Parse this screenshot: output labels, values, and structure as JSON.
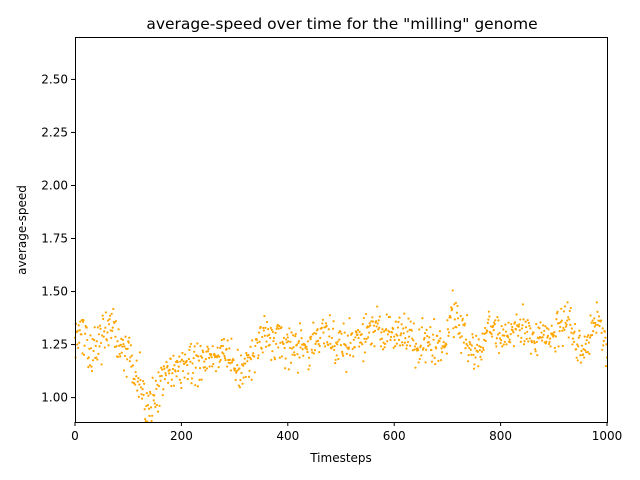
{
  "chart_data": {
    "type": "scatter",
    "title": "average-speed over time for the \"milling\" genome",
    "xlabel": "Timesteps",
    "ylabel": "average-speed",
    "xlim": [
      0,
      1000
    ],
    "ylim": [
      0.885,
      2.7
    ],
    "x_ticks": [
      0,
      200,
      400,
      600,
      800,
      1000
    ],
    "y_ticks": [
      1.0,
      1.25,
      1.5,
      1.75,
      2.0,
      2.25,
      2.5
    ],
    "x_tick_labels": [
      "0",
      "200",
      "400",
      "600",
      "800",
      "1000"
    ],
    "y_tick_labels": [
      "1.00",
      "1.25",
      "1.50",
      "1.75",
      "2.00",
      "2.25",
      "2.50"
    ],
    "grid": false,
    "marker_color": "#FFA500",
    "trend": {
      "x": [
        0,
        20,
        30,
        50,
        70,
        80,
        100,
        120,
        135,
        150,
        170,
        200,
        230,
        260,
        290,
        310,
        330,
        360,
        390,
        410,
        440,
        470,
        500,
        530,
        560,
        600,
        630,
        660,
        690,
        710,
        730,
        750,
        760,
        780,
        800,
        830,
        850,
        870,
        900,
        920,
        940,
        950,
        970,
        985,
        1000
      ],
      "y": [
        1.32,
        1.32,
        1.2,
        1.27,
        1.36,
        1.24,
        1.2,
        1.09,
        0.97,
        1.02,
        1.11,
        1.14,
        1.16,
        1.19,
        1.21,
        1.13,
        1.2,
        1.3,
        1.27,
        1.22,
        1.27,
        1.29,
        1.24,
        1.27,
        1.33,
        1.3,
        1.27,
        1.23,
        1.25,
        1.39,
        1.32,
        1.21,
        1.22,
        1.32,
        1.3,
        1.34,
        1.3,
        1.26,
        1.32,
        1.35,
        1.25,
        1.2,
        1.3,
        1.35,
        1.25
      ]
    },
    "noise_amplitude": 0.05
  }
}
